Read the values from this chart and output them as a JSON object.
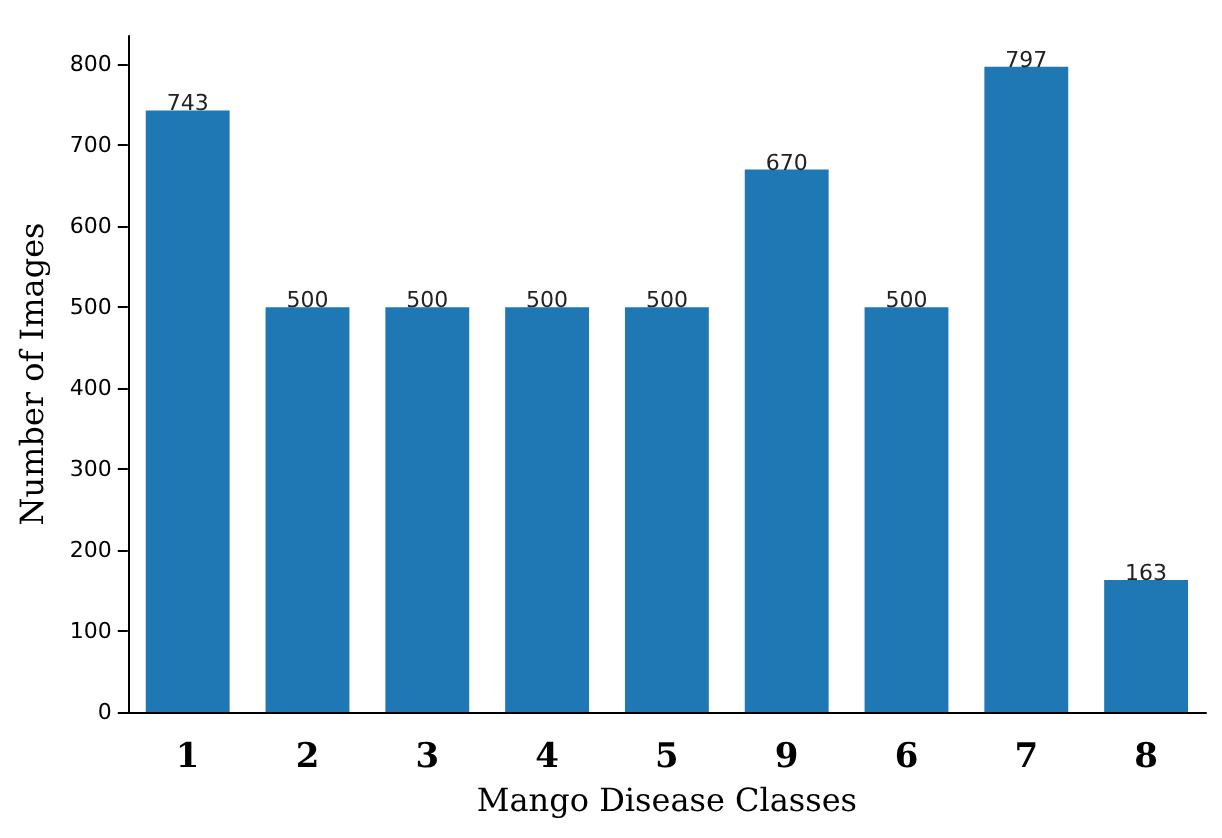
{
  "chart_data": {
    "type": "bar",
    "xlabel": "Mango Disease Classes",
    "ylabel": "Number of Images",
    "categories": [
      "1",
      "2",
      "3",
      "4",
      "5",
      "9",
      "6",
      "7",
      "8"
    ],
    "values": [
      743,
      500,
      500,
      500,
      500,
      670,
      500,
      797,
      163
    ],
    "color": "#1f77b4",
    "ylim": [
      0,
      835
    ],
    "yticks": [
      0,
      100,
      200,
      300,
      400,
      500,
      600,
      700,
      800
    ],
    "grid": false,
    "data_labels": true
  }
}
